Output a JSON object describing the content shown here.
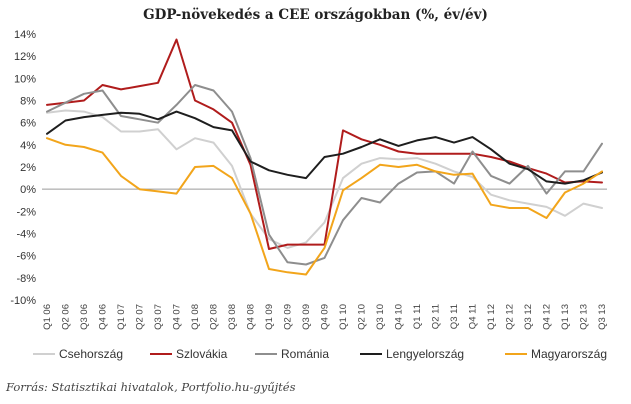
{
  "chart_data": {
    "type": "line",
    "title": "GDP-növekedés  a CEE országokban (%, év/év)",
    "xlabel": "",
    "ylabel": "",
    "ylim": [
      -10,
      14
    ],
    "yticks": [
      14,
      12,
      10,
      8,
      6,
      4,
      2,
      0,
      -2,
      -4,
      -6,
      -8,
      -10
    ],
    "ytick_labels": [
      "14%",
      "12%",
      "10%",
      "8%",
      "6%",
      "4%",
      "2%",
      "0%",
      "-2%",
      "-4%",
      "-6%",
      "-8%",
      "-10%"
    ],
    "categories": [
      "Q1 06",
      "Q2 06",
      "Q3 06",
      "Q4 06",
      "Q1 07",
      "Q2 07",
      "Q3 07",
      "Q4 07",
      "Q1 08",
      "Q2 08",
      "Q3 08",
      "Q4 08",
      "Q1 09",
      "Q2 09",
      "Q3 09",
      "Q4 09",
      "Q1 10",
      "Q2 10",
      "Q3 10",
      "Q4 10",
      "Q1 11",
      "Q2 11",
      "Q3 11",
      "Q4 11",
      "Q1 12",
      "Q2 12",
      "Q3 12",
      "Q4 12",
      "Q1 13",
      "Q2 13",
      "Q3 13"
    ],
    "series": [
      {
        "name": "Csehország",
        "color": "#d0d0d0",
        "values": [
          6.9,
          7.1,
          7.0,
          6.5,
          5.2,
          5.2,
          5.4,
          3.6,
          4.6,
          4.2,
          2.1,
          -2.2,
          -4.5,
          -5.3,
          -4.8,
          -3.0,
          1.0,
          2.3,
          2.8,
          2.7,
          2.8,
          2.3,
          1.6,
          1.1,
          -0.5,
          -1.0,
          -1.3,
          -1.6,
          -2.4,
          -1.3,
          -1.7
        ]
      },
      {
        "name": "Szlovákia",
        "color": "#b01c1c",
        "values": [
          7.6,
          7.8,
          8.0,
          9.4,
          9.0,
          9.3,
          9.6,
          13.5,
          8.0,
          7.2,
          6.0,
          2.2,
          -5.4,
          -5.0,
          -5.0,
          -5.0,
          5.3,
          4.5,
          4.0,
          3.4,
          3.2,
          3.2,
          3.2,
          3.2,
          2.9,
          2.5,
          1.9,
          1.4,
          0.6,
          0.7,
          0.6
        ]
      },
      {
        "name": "Románia",
        "color": "#8e8e8e",
        "values": [
          7.0,
          7.8,
          8.6,
          8.9,
          6.6,
          6.3,
          6.0,
          7.6,
          9.4,
          8.9,
          7.0,
          2.8,
          -4.1,
          -6.6,
          -6.8,
          -6.2,
          -2.8,
          -0.8,
          -1.2,
          0.5,
          1.5,
          1.6,
          0.5,
          3.4,
          1.2,
          0.5,
          2.1,
          -0.4,
          1.6,
          1.6,
          4.1
        ]
      },
      {
        "name": "Lengyelország",
        "color": "#1e1e1e",
        "values": [
          5.0,
          6.2,
          6.5,
          6.7,
          6.9,
          6.8,
          6.3,
          7.0,
          6.4,
          5.6,
          5.3,
          2.5,
          1.7,
          1.3,
          1.0,
          2.9,
          3.2,
          3.8,
          4.5,
          3.9,
          4.4,
          4.7,
          4.2,
          4.7,
          3.6,
          2.3,
          1.8,
          0.7,
          0.5,
          0.8,
          1.5
        ]
      },
      {
        "name": "Magyarország",
        "color": "#f2a51b",
        "values": [
          4.6,
          4.0,
          3.8,
          3.3,
          1.2,
          0.0,
          -0.2,
          -0.4,
          2.0,
          2.1,
          1.0,
          -2.2,
          -7.2,
          -7.5,
          -7.7,
          -5.3,
          -0.1,
          1.0,
          2.2,
          2.0,
          2.2,
          1.6,
          1.3,
          1.4,
          -1.4,
          -1.7,
          -1.7,
          -2.6,
          -0.3,
          0.5,
          1.6
        ]
      }
    ]
  },
  "source_text": "Forrás: Statisztikai hivatalok, Portfolio.hu-gyűjtés"
}
